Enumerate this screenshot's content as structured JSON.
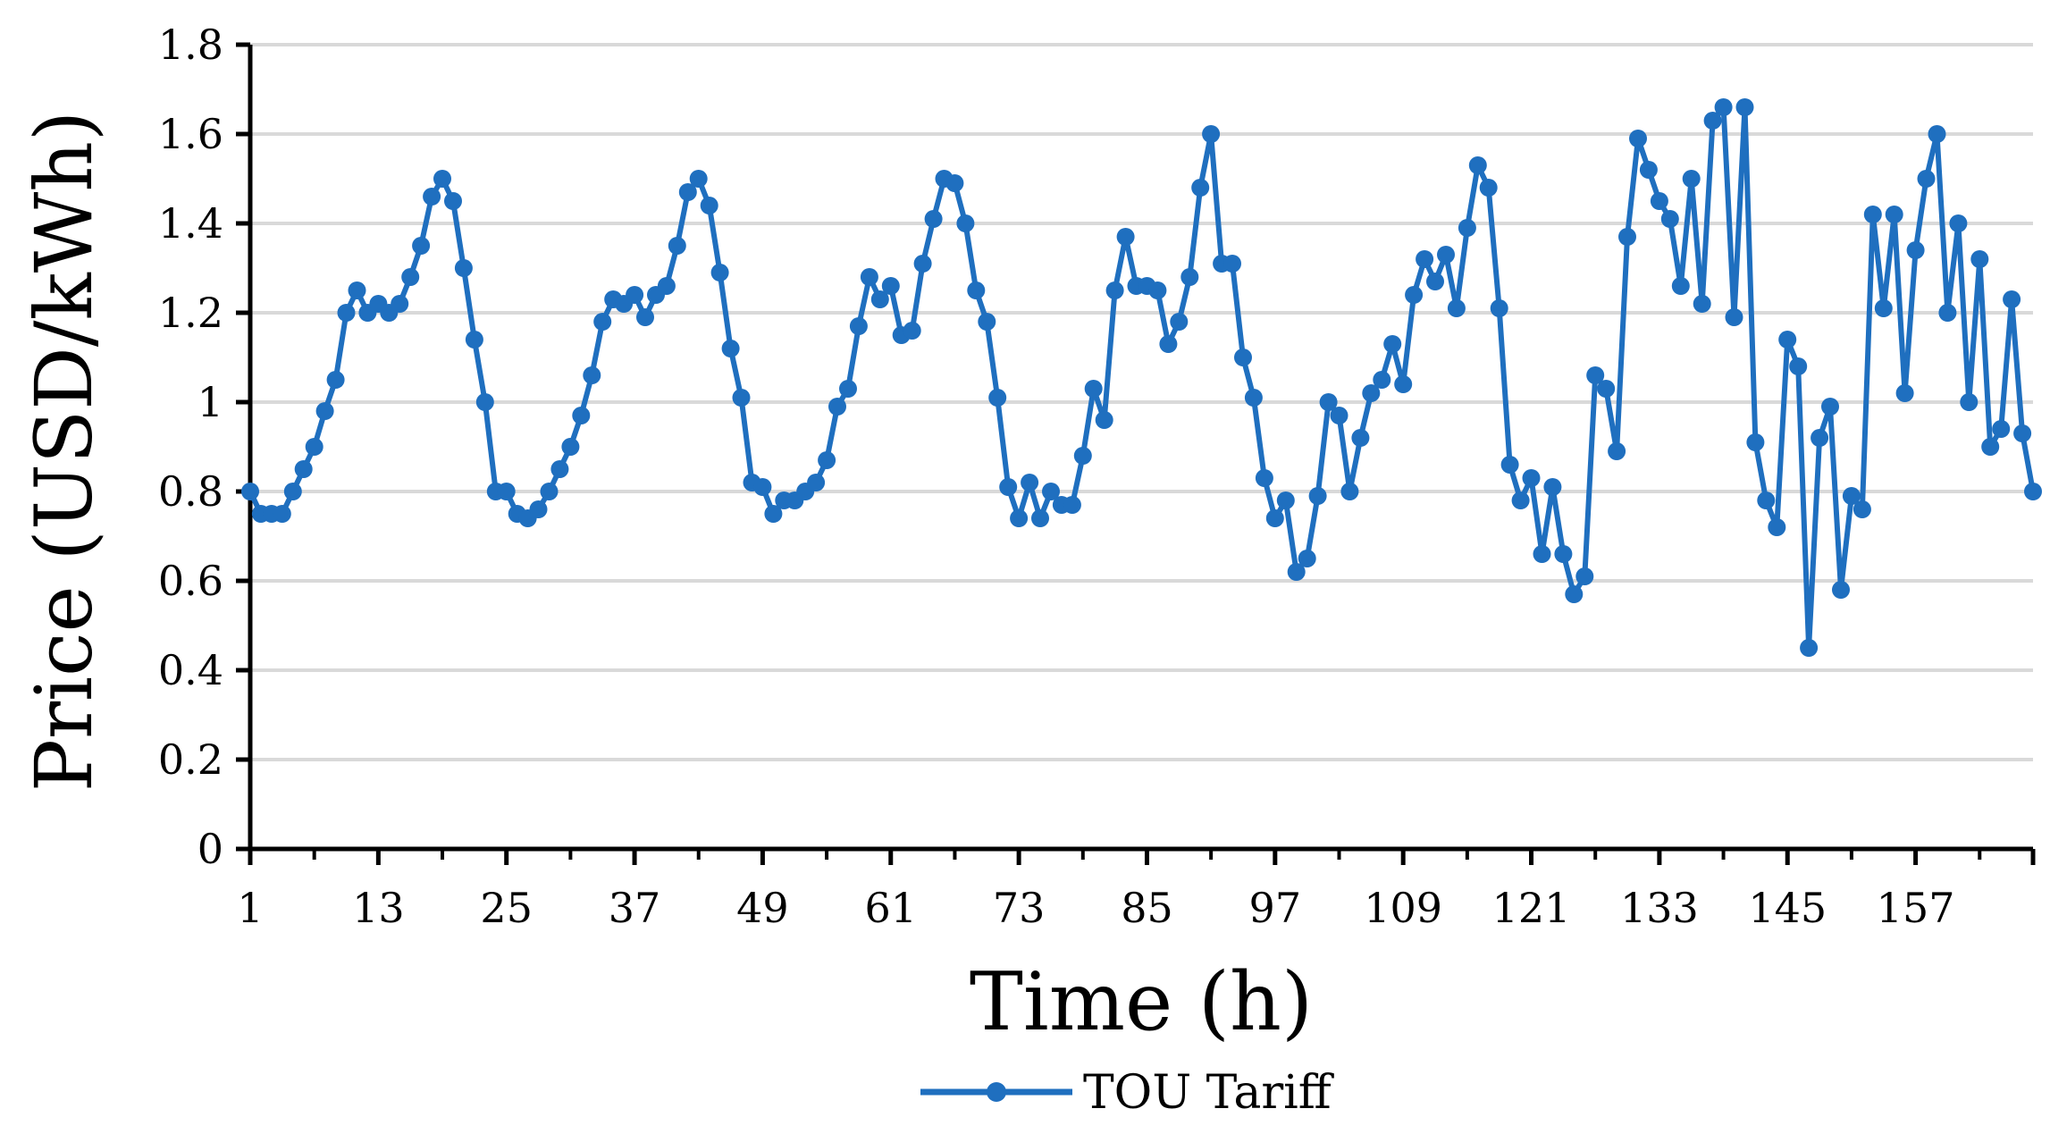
{
  "chart_data": {
    "type": "line",
    "title": "",
    "xlabel": "Time (h)",
    "ylabel": "Price (USD/kWh)",
    "xlim": [
      1,
      168
    ],
    "ylim": [
      0,
      1.8
    ],
    "x_tick_labels": [
      "1",
      "13",
      "25",
      "37",
      "49",
      "61",
      "73",
      "85",
      "97",
      "109",
      "121",
      "133",
      "145",
      "157"
    ],
    "y_tick_labels": [
      "0",
      "0.2",
      "0.4",
      "0.6",
      "0.8",
      "1",
      "1.2",
      "1.4",
      "1.6",
      "1.8"
    ],
    "grid": "horizontal",
    "legend_position": "bottom",
    "colors": {
      "series": "#1F6FBF",
      "grid": "#D9D9D9",
      "axis": "#000000"
    },
    "series": [
      {
        "name": "TOU Tariff",
        "values": [
          0.8,
          0.75,
          0.75,
          0.75,
          0.8,
          0.85,
          0.9,
          0.98,
          1.05,
          1.2,
          1.25,
          1.2,
          1.22,
          1.2,
          1.22,
          1.28,
          1.35,
          1.46,
          1.5,
          1.45,
          1.3,
          1.14,
          1.0,
          0.8,
          0.8,
          0.75,
          0.74,
          0.76,
          0.8,
          0.85,
          0.9,
          0.97,
          1.06,
          1.18,
          1.23,
          1.22,
          1.24,
          1.19,
          1.24,
          1.26,
          1.35,
          1.47,
          1.5,
          1.44,
          1.29,
          1.12,
          1.01,
          0.82,
          0.81,
          0.75,
          0.78,
          0.78,
          0.8,
          0.82,
          0.87,
          0.99,
          1.03,
          1.17,
          1.28,
          1.23,
          1.26,
          1.15,
          1.16,
          1.31,
          1.41,
          1.5,
          1.49,
          1.4,
          1.25,
          1.18,
          1.01,
          0.81,
          0.74,
          0.82,
          0.74,
          0.8,
          0.77,
          0.77,
          0.88,
          1.03,
          0.96,
          1.25,
          1.37,
          1.26,
          1.26,
          1.25,
          1.13,
          1.18,
          1.28,
          1.48,
          1.6,
          1.31,
          1.31,
          1.1,
          1.01,
          0.83,
          0.74,
          0.78,
          0.62,
          0.65,
          0.79,
          1.0,
          0.97,
          0.8,
          0.92,
          1.02,
          1.05,
          1.13,
          1.04,
          1.24,
          1.32,
          1.27,
          1.33,
          1.21,
          1.39,
          1.53,
          1.48,
          1.21,
          0.86,
          0.78,
          0.83,
          0.66,
          0.81,
          0.66,
          0.57,
          0.61,
          1.06,
          1.03,
          0.89,
          1.37,
          1.59,
          1.52,
          1.45,
          1.41,
          1.26,
          1.5,
          1.22,
          1.63,
          1.66,
          1.19,
          1.66,
          0.91,
          0.78,
          0.72,
          1.14,
          1.08,
          0.45,
          0.92,
          0.99,
          0.58,
          0.79,
          0.76,
          1.42,
          1.21,
          1.42,
          1.02,
          1.34,
          1.5,
          1.6,
          1.2,
          1.4,
          1.0,
          1.32,
          0.9,
          0.94,
          1.23,
          0.93,
          0.8
        ]
      }
    ]
  }
}
